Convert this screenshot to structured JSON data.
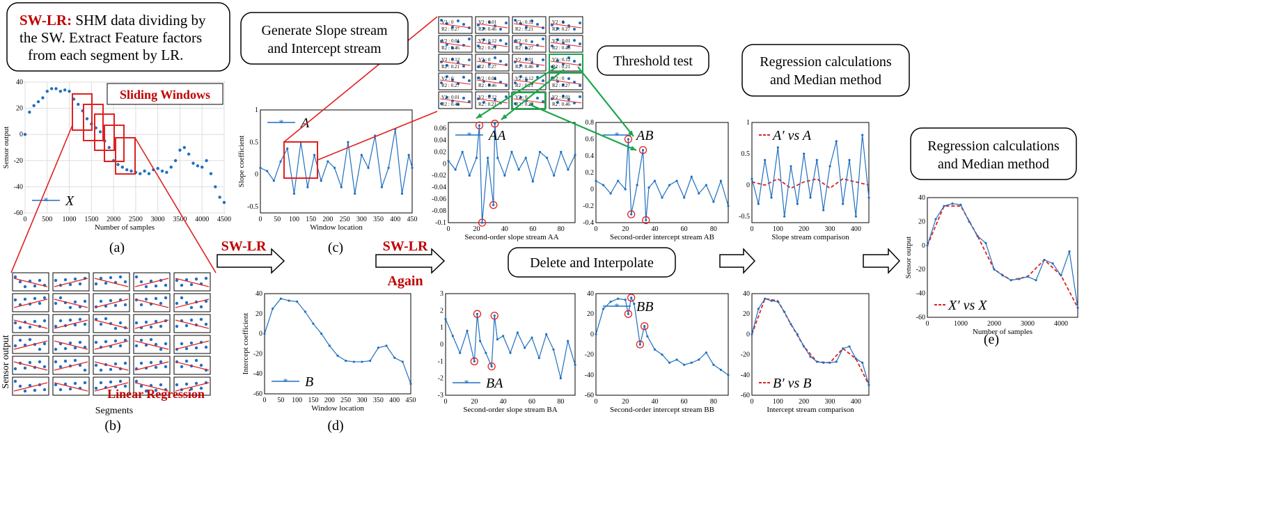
{
  "captions": {
    "box_swlr_red": "SW-LR:",
    "box_swlr_line1": " SHM data dividing by",
    "box_swlr_line2": "the SW. Extract Feature factors",
    "box_swlr_line3": "from each segment by LR.",
    "box_generate_line1": "Generate Slope stream",
    "box_generate_line2": "and Intercept stream",
    "box_threshold": "Threshold test",
    "box_regression_line1": "Regression calculations",
    "box_regression_line2": "and Median method",
    "box_delete": "Delete and Interpolate",
    "sliding_windows": "Sliding Windows",
    "linear_regression": "Linear Regression",
    "sw_lr_1": "SW-LR",
    "sw_lr_2": "SW-LR",
    "again": "Again",
    "panel_a": "(a)",
    "panel_b": "(b)",
    "panel_c": "(c)",
    "panel_d": "(d)",
    "panel_e": "(e)",
    "b_ylabel": "Sensor output",
    "b_xlabel": "Segments",
    "mini_labels": [
      "V2 : 0",
      "R2 : 0.27",
      "V2 : 0.01",
      "R2 : 0.46",
      "V2 : 0.12",
      "R2 : 0.21"
    ]
  },
  "chart_data": [
    {
      "id": "a",
      "type": "scatter",
      "xlabel": "Number of samples",
      "ylabel": "Sensor output",
      "xlim": [
        0,
        4500
      ],
      "ylim": [
        -60,
        40
      ],
      "xticks": [
        0,
        500,
        1000,
        1500,
        2000,
        2500,
        3000,
        3500,
        4000,
        4500
      ],
      "yticks": [
        40,
        20,
        0,
        -20,
        -40,
        -60
      ],
      "legend": "X",
      "series": [
        {
          "name": "X",
          "x": [
            0,
            100,
            200,
            300,
            400,
            500,
            600,
            700,
            800,
            900,
            1000,
            1100,
            1200,
            1300,
            1400,
            1500,
            1600,
            1700,
            1800,
            1900,
            2000,
            2100,
            2200,
            2300,
            2400,
            2500,
            2600,
            2700,
            2800,
            2900,
            3000,
            3100,
            3200,
            3300,
            3400,
            3500,
            3600,
            3700,
            3800,
            3900,
            4000,
            4100,
            4200,
            4300,
            4400,
            4500
          ],
          "y": [
            0,
            17,
            22,
            25,
            28,
            33,
            35,
            35,
            33,
            34,
            33,
            27,
            23,
            18,
            12,
            8,
            5,
            2,
            -5,
            -10,
            -20,
            -23,
            -25,
            -27,
            -28,
            -29,
            -30,
            -28,
            -30,
            -27,
            -26,
            -28,
            -29,
            -25,
            -20,
            -12,
            -10,
            -15,
            -22,
            -24,
            -25,
            -20,
            -30,
            -40,
            -48,
            -52
          ]
        }
      ]
    },
    {
      "id": "c",
      "type": "line",
      "xlabel": "Window location",
      "ylabel": "Slope coefficient",
      "xlim": [
        0,
        450
      ],
      "ylim": [
        -0.6,
        1
      ],
      "xticks": [
        0,
        50,
        100,
        150,
        200,
        250,
        300,
        350,
        400,
        450
      ],
      "yticks": [
        1,
        0.5,
        0,
        -0.5
      ],
      "legend": "A",
      "series": [
        {
          "name": "A",
          "x": [
            0,
            20,
            40,
            60,
            80,
            100,
            120,
            140,
            160,
            180,
            200,
            220,
            240,
            260,
            280,
            300,
            320,
            340,
            360,
            380,
            400,
            420,
            440,
            450
          ],
          "y": [
            0.1,
            0.05,
            -0.1,
            0.2,
            0.4,
            -0.3,
            0.5,
            -0.2,
            0.3,
            -0.1,
            0.2,
            0.1,
            -0.2,
            0.5,
            -0.3,
            0.3,
            0.1,
            0.6,
            -0.2,
            0.1,
            0.7,
            -0.3,
            0.3,
            0.1
          ]
        }
      ]
    },
    {
      "id": "d",
      "type": "line",
      "xlabel": "Window location",
      "ylabel": "Intercept coefficient",
      "xlim": [
        0,
        450
      ],
      "ylim": [
        -60,
        40
      ],
      "xticks": [
        0,
        50,
        100,
        150,
        200,
        250,
        300,
        350,
        400,
        450
      ],
      "yticks": [
        40,
        20,
        0,
        -20,
        -40,
        -60
      ],
      "legend": "B",
      "series": [
        {
          "name": "B",
          "x": [
            0,
            25,
            50,
            75,
            100,
            125,
            150,
            175,
            200,
            225,
            250,
            275,
            300,
            325,
            350,
            375,
            400,
            425,
            450
          ],
          "y": [
            0,
            25,
            35,
            33,
            32,
            22,
            10,
            0,
            -12,
            -22,
            -27,
            -28,
            -28,
            -27,
            -14,
            -12,
            -24,
            -28,
            -50
          ]
        }
      ]
    },
    {
      "id": "AA",
      "type": "line",
      "xlabel": "Second-order slope stream AA",
      "xlim": [
        0,
        90
      ],
      "ylim": [
        -0.1,
        0.07
      ],
      "xticks": [
        0,
        20,
        40,
        60,
        80
      ],
      "yticks": [
        0.06,
        0.04,
        0.02,
        0,
        -0.02,
        -0.04,
        -0.06,
        -0.08,
        -0.1
      ],
      "legend": "AA",
      "series": [
        {
          "name": "AA",
          "x": [
            0,
            5,
            10,
            15,
            20,
            22,
            24,
            28,
            32,
            33,
            35,
            40,
            45,
            50,
            55,
            60,
            65,
            70,
            75,
            80,
            85,
            90
          ],
          "y": [
            0.005,
            -0.01,
            0.02,
            -0.02,
            0.01,
            0.065,
            -0.1,
            0.01,
            -0.07,
            0.068,
            0.01,
            -0.02,
            0.02,
            -0.01,
            0.01,
            -0.03,
            0.02,
            0.01,
            -0.02,
            0.02,
            -0.01,
            0.015
          ]
        }
      ]
    },
    {
      "id": "AB",
      "type": "line",
      "xlabel": "Second-order intercept stream AB",
      "xlim": [
        0,
        90
      ],
      "ylim": [
        -0.4,
        0.8
      ],
      "xticks": [
        0,
        20,
        40,
        60,
        80
      ],
      "yticks": [
        0.8,
        0.6,
        0.4,
        0.2,
        0,
        -0.2,
        -0.4
      ],
      "legend": "AB",
      "series": [
        {
          "name": "AB",
          "x": [
            0,
            5,
            10,
            15,
            20,
            22,
            24,
            28,
            32,
            34,
            36,
            40,
            45,
            50,
            55,
            60,
            65,
            70,
            75,
            80,
            85,
            90
          ],
          "y": [
            0.1,
            0.05,
            -0.05,
            0.1,
            0,
            0.6,
            -0.3,
            0.05,
            0.47,
            -0.37,
            0.02,
            0.1,
            -0.1,
            0.05,
            0.1,
            -0.1,
            0.15,
            -0.05,
            0.05,
            -0.15,
            0.1,
            -0.2
          ]
        }
      ]
    },
    {
      "id": "BA",
      "type": "line",
      "xlabel": "Second-order slope stream BA",
      "xlim": [
        0,
        90
      ],
      "ylim": [
        -3,
        3
      ],
      "xticks": [
        0,
        20,
        40,
        60,
        80
      ],
      "yticks": [
        3,
        2,
        1,
        0,
        -1,
        -2,
        -3
      ],
      "legend": "BA",
      "series": [
        {
          "name": "BA",
          "x": [
            0,
            5,
            10,
            15,
            20,
            22,
            24,
            28,
            32,
            34,
            36,
            40,
            45,
            50,
            55,
            60,
            65,
            70,
            75,
            80,
            85,
            90
          ],
          "y": [
            1.5,
            0.5,
            -0.5,
            0.8,
            -1,
            1.8,
            0.2,
            -0.5,
            -1.3,
            1.7,
            0.3,
            0.5,
            -0.5,
            0.7,
            -0.2,
            0.4,
            -0.8,
            0.6,
            -0.3,
            -2,
            0.2,
            -1.2
          ]
        }
      ]
    },
    {
      "id": "BB",
      "type": "line",
      "xlabel": "Second-order intercept stream BB",
      "xlim": [
        0,
        90
      ],
      "ylim": [
        -60,
        40
      ],
      "xticks": [
        0,
        20,
        40,
        60,
        80
      ],
      "yticks": [
        40,
        20,
        0,
        -20,
        -40,
        -60
      ],
      "legend": "BB",
      "series": [
        {
          "name": "BB",
          "x": [
            0,
            5,
            10,
            15,
            20,
            22,
            24,
            26,
            30,
            33,
            35,
            40,
            45,
            50,
            55,
            60,
            65,
            70,
            75,
            80,
            85,
            90
          ],
          "y": [
            0,
            25,
            32,
            35,
            34,
            20,
            36,
            30,
            -10,
            8,
            -2,
            -15,
            -20,
            -28,
            -25,
            -30,
            -28,
            -25,
            -18,
            -30,
            -35,
            -40
          ]
        }
      ]
    },
    {
      "id": "slope_cmp",
      "type": "line",
      "xlabel": "Slope stream comparison",
      "xlim": [
        0,
        450
      ],
      "ylim": [
        -0.6,
        1
      ],
      "xticks": [
        0,
        100,
        200,
        300,
        400
      ],
      "yticks": [
        1,
        0.5,
        0,
        -0.5
      ],
      "legend": "A′ vs A",
      "series": [
        {
          "name": "A′",
          "x": [
            0,
            50,
            100,
            150,
            200,
            250,
            300,
            350,
            400,
            450
          ],
          "y": [
            0.05,
            0,
            0.1,
            -0.05,
            0.05,
            0.1,
            -0.05,
            0.1,
            0.05,
            0
          ]
        },
        {
          "name": "A",
          "x": [
            0,
            25,
            50,
            75,
            100,
            125,
            150,
            175,
            200,
            225,
            250,
            275,
            300,
            325,
            350,
            375,
            400,
            425,
            450
          ],
          "y": [
            0.1,
            -0.3,
            0.4,
            -0.2,
            0.6,
            -0.5,
            0.3,
            -0.3,
            0.5,
            -0.2,
            0.4,
            -0.4,
            0.3,
            0.7,
            -0.3,
            0.4,
            -0.5,
            0.8,
            -0.2
          ]
        }
      ]
    },
    {
      "id": "intercept_cmp",
      "type": "line",
      "xlabel": "Intercept stream comparison",
      "xlim": [
        0,
        450
      ],
      "ylim": [
        -60,
        40
      ],
      "xticks": [
        0,
        100,
        200,
        300,
        400
      ],
      "yticks": [
        40,
        20,
        0,
        -20,
        -40,
        -60
      ],
      "legend": "B′ vs B",
      "series": [
        {
          "name": "B′",
          "x": [
            0,
            50,
            100,
            150,
            200,
            250,
            300,
            350,
            400,
            450
          ],
          "y": [
            0,
            35,
            33,
            10,
            -12,
            -27,
            -28,
            -14,
            -24,
            -50
          ]
        },
        {
          "name": "B",
          "x": [
            0,
            25,
            50,
            75,
            100,
            125,
            150,
            175,
            200,
            225,
            250,
            275,
            300,
            325,
            350,
            375,
            400,
            425,
            450
          ],
          "y": [
            0,
            25,
            35,
            33,
            32,
            22,
            10,
            0,
            -12,
            -22,
            -27,
            -28,
            -28,
            -27,
            -14,
            -12,
            -24,
            -28,
            -50
          ]
        }
      ]
    },
    {
      "id": "e",
      "type": "line",
      "xlabel": "Number of samples",
      "ylabel": "Sensor output",
      "xlim": [
        0,
        4500
      ],
      "ylim": [
        -60,
        40
      ],
      "xticks": [
        0,
        1000,
        2000,
        3000,
        4000
      ],
      "yticks": [
        40,
        20,
        0,
        -20,
        -40,
        -60
      ],
      "legend": "X′ vs X",
      "series": [
        {
          "name": "X′",
          "x": [
            0,
            500,
            1000,
            1500,
            2000,
            2500,
            3000,
            3500,
            4000,
            4500
          ],
          "y": [
            0,
            33,
            33,
            8,
            -20,
            -29,
            -26,
            -12,
            -25,
            -52
          ]
        },
        {
          "name": "X",
          "x": [
            0,
            250,
            500,
            750,
            1000,
            1250,
            1500,
            1750,
            2000,
            2250,
            2500,
            2750,
            3000,
            3250,
            3500,
            3750,
            4000,
            4250,
            4500
          ],
          "y": [
            0,
            22,
            33,
            35,
            34,
            20,
            8,
            2,
            -20,
            -25,
            -29,
            -28,
            -26,
            -29,
            -12,
            -15,
            -25,
            -5,
            -52
          ]
        }
      ]
    }
  ]
}
